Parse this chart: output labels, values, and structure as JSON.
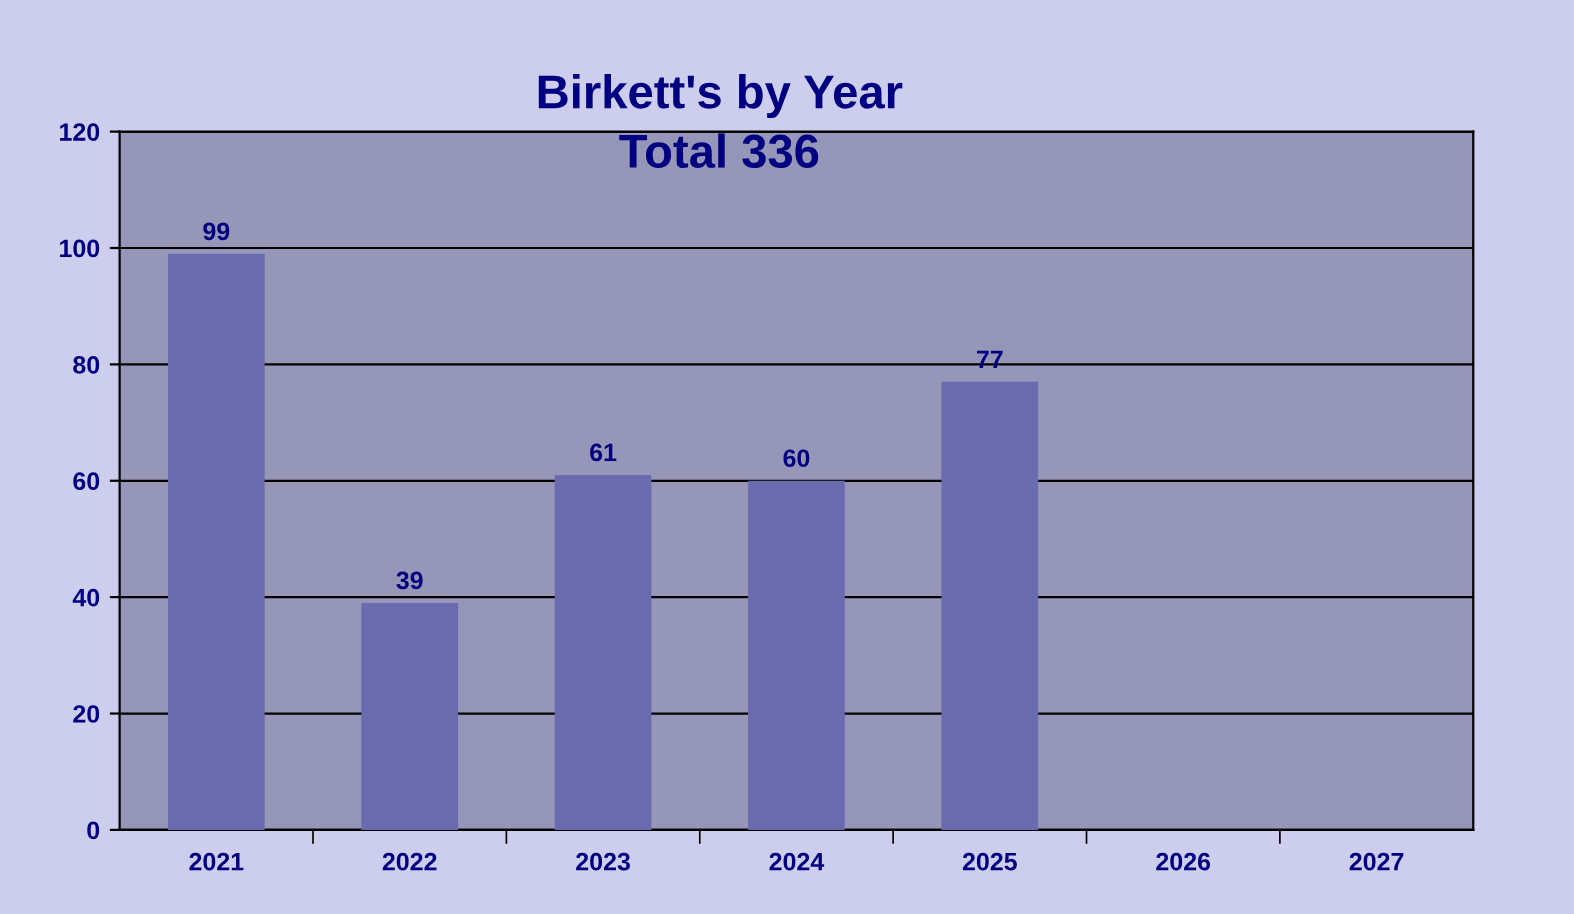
{
  "chart_data": {
    "type": "bar",
    "title": "Birkett's by Year",
    "subtitle": "Total 336",
    "categories": [
      "2021",
      "2022",
      "2023",
      "2024",
      "2025",
      "2026",
      "2027"
    ],
    "values": [
      99,
      39,
      61,
      60,
      77,
      null,
      null
    ],
    "color": "#6a6aae",
    "ylim": [
      0,
      120
    ],
    "yticks": [
      0,
      20,
      40,
      60,
      80,
      100,
      120
    ],
    "grid": "y",
    "data_labels": true
  }
}
